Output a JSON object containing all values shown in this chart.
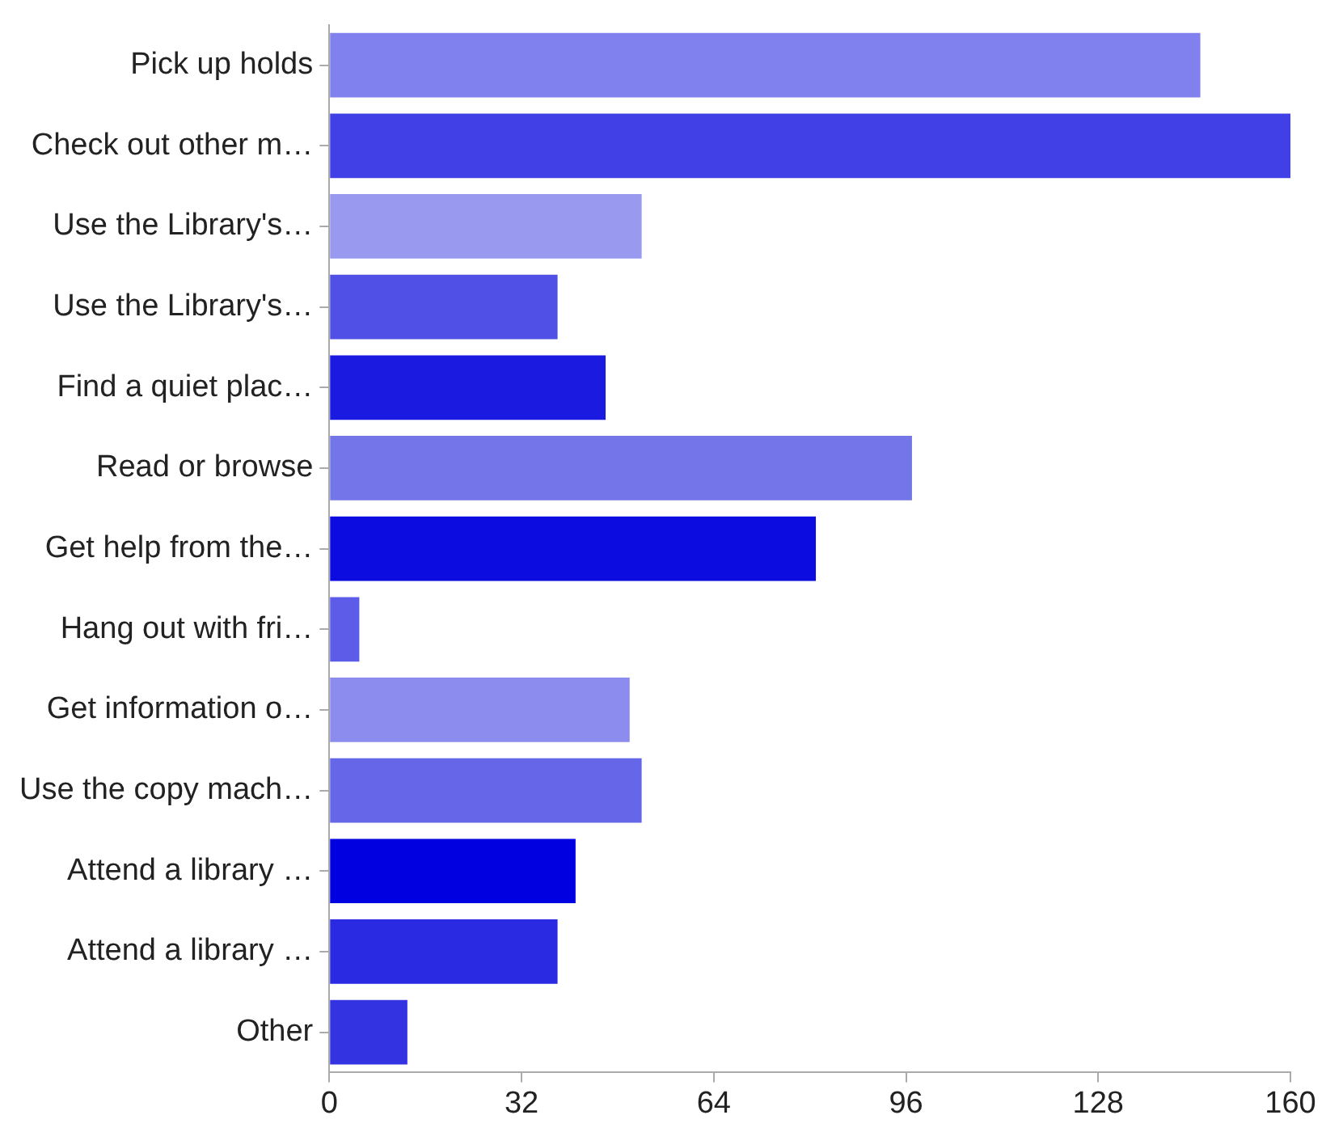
{
  "chart_data": {
    "type": "bar",
    "orientation": "horizontal",
    "categories": [
      "Pick up holds",
      "Check out other m…",
      "Use the Library's…",
      "Use the Library's…",
      "Find a quiet plac…",
      "Read or browse",
      "Get help from the…",
      "Hang out with fri…",
      "Get information o…",
      "Use the copy mach…",
      "Attend a library …",
      "Attend a library …",
      "Other"
    ],
    "values": [
      145,
      160,
      52,
      38,
      46,
      97,
      81,
      5,
      50,
      52,
      41,
      38,
      13
    ],
    "colors": [
      "#8080ee",
      "#4040e6",
      "#9999f0",
      "#5050e6",
      "#1a1ae0",
      "#7575ea",
      "#0c0ce0",
      "#5c5ce8",
      "#8c8cef",
      "#6666e8",
      "#0000e0",
      "#2a2ae2",
      "#3333e2"
    ],
    "xlim": [
      0,
      160
    ],
    "xticks": [
      0,
      32,
      64,
      96,
      128,
      160
    ],
    "grid": false,
    "legend": false
  }
}
